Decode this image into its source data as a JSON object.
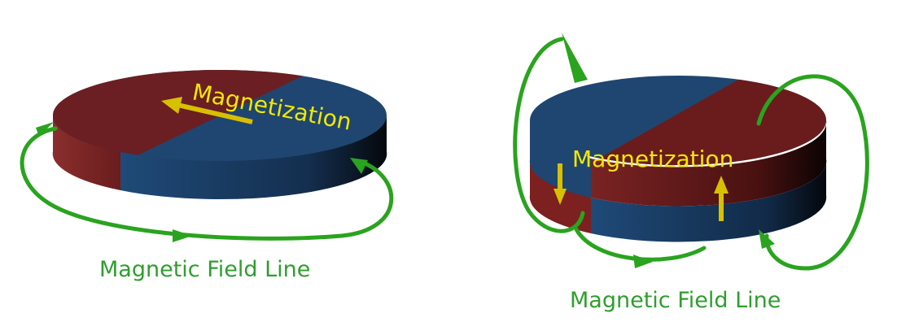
{
  "left_magnet": {
    "magnetization_label": "Magnetization",
    "field_line_label": "Magnetic Field Line"
  },
  "right_magnet": {
    "magnetization_label": "Magnetization",
    "field_line_label": "Magnetic Field Line"
  },
  "colors": {
    "north_red": "#6e1f1f",
    "south_blue": "#1f3f66",
    "field_green": "#2aa31f",
    "magnetization_yellow": "#f2e800"
  },
  "icons": [
    "magnetization-arrow-icon",
    "field-line-arrow-icon"
  ]
}
